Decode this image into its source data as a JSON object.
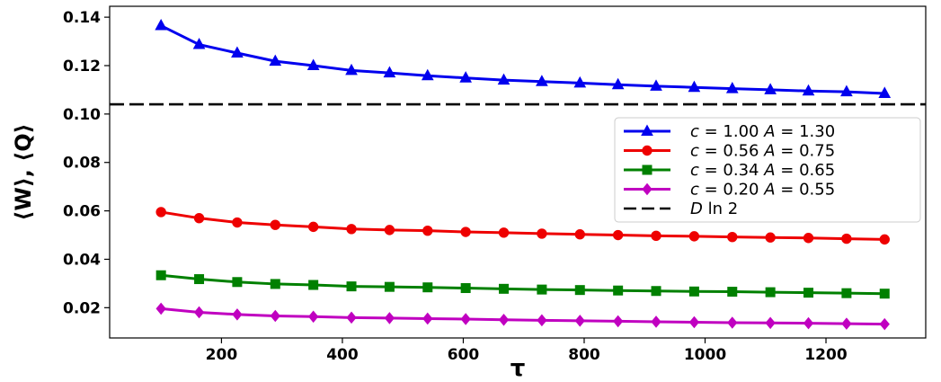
{
  "chart_data": {
    "type": "line",
    "title": "",
    "xlabel": "τ",
    "ylabel": "⟨W⟩, ⟨Q⟩",
    "xlim": [
      15,
      1365
    ],
    "ylim": [
      0.0075,
      0.1445
    ],
    "xticks": [
      200,
      400,
      600,
      800,
      1000,
      1200
    ],
    "xtick_labels": [
      "200",
      "400",
      "600",
      "800",
      "1000",
      "1200"
    ],
    "yticks": [
      0.02,
      0.04,
      0.06,
      0.08,
      0.1,
      0.12,
      0.14
    ],
    "ytick_labels": [
      "0.02",
      "0.04",
      "0.06",
      "0.08",
      "0.10",
      "0.12",
      "0.14"
    ],
    "grid": false,
    "legend_position": "right",
    "x": [
      100,
      163,
      226,
      289,
      352,
      415,
      478,
      541,
      604,
      667,
      730,
      793,
      856,
      919,
      982,
      1045,
      1108,
      1171,
      1234,
      1297
    ],
    "series": [
      {
        "name": "c = 1.00   A = 1.30",
        "label_parts": [
          "c",
          " = 1.00   ",
          "A",
          " = 1.30"
        ],
        "color": "#0000ee",
        "marker": "triangle",
        "values": [
          0.1365,
          0.1287,
          0.1252,
          0.1218,
          0.12,
          0.118,
          0.117,
          0.1158,
          0.1149,
          0.114,
          0.1134,
          0.1128,
          0.1121,
          0.1115,
          0.111,
          0.1105,
          0.11,
          0.1095,
          0.1092,
          0.1085
        ]
      },
      {
        "name": "c = 0.56   A = 0.75",
        "label_parts": [
          "c",
          " = 0.56   ",
          "A",
          " = 0.75"
        ],
        "color": "#ee0000",
        "marker": "circle",
        "values": [
          0.0595,
          0.057,
          0.0552,
          0.0542,
          0.0534,
          0.0525,
          0.0521,
          0.0518,
          0.0513,
          0.051,
          0.0506,
          0.0503,
          0.05,
          0.0497,
          0.0495,
          0.0492,
          0.049,
          0.0488,
          0.0485,
          0.0482
        ]
      },
      {
        "name": "c = 0.34   A = 0.65",
        "label_parts": [
          "c",
          " = 0.34   ",
          "A",
          " = 0.65"
        ],
        "color": "#008000",
        "marker": "square",
        "values": [
          0.0334,
          0.0318,
          0.0306,
          0.0298,
          0.0294,
          0.0288,
          0.0286,
          0.0284,
          0.0281,
          0.0278,
          0.0275,
          0.0273,
          0.0271,
          0.0269,
          0.0267,
          0.0266,
          0.0264,
          0.0262,
          0.026,
          0.0258
        ]
      },
      {
        "name": "c = 0.20   A = 0.55",
        "label_parts": [
          "c",
          " = 0.20   ",
          "A",
          " = 0.55"
        ],
        "color": "#c000c0",
        "marker": "diamond",
        "values": [
          0.0196,
          0.0181,
          0.0172,
          0.0166,
          0.0163,
          0.0159,
          0.0157,
          0.0155,
          0.0153,
          0.015,
          0.0148,
          0.0146,
          0.0144,
          0.0142,
          0.014,
          0.0138,
          0.0137,
          0.0136,
          0.0134,
          0.0132
        ]
      }
    ],
    "reference_line": {
      "name": "D ln 2",
      "label_parts": [
        "D",
        " ln 2"
      ],
      "color": "#000000",
      "style": "dashed",
      "value": 0.104
    }
  }
}
